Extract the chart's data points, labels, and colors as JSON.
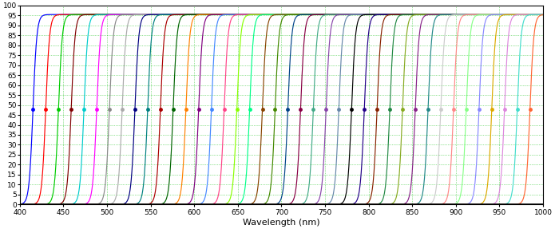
{
  "xmin": 400,
  "xmax": 1000,
  "ymin": 0,
  "ymax": 100,
  "xlabel": "Wavelength (nm)",
  "xticks": [
    400,
    450,
    500,
    550,
    600,
    650,
    700,
    750,
    800,
    850,
    900,
    950,
    1000
  ],
  "yticks": [
    0,
    5,
    10,
    15,
    20,
    25,
    30,
    35,
    40,
    45,
    50,
    55,
    60,
    65,
    70,
    75,
    80,
    85,
    90,
    95,
    100
  ],
  "background_color": "#ffffff",
  "grid_color": "#00bb00",
  "n_curves": 40,
  "center_start": 415,
  "center_end": 985,
  "steepness": 0.45,
  "max_transmission": 95.5,
  "figwidth": 6.95,
  "figheight": 2.87,
  "dpi": 100,
  "linewidth": 0.85,
  "markersize": 3.5,
  "xlabel_fontsize": 8,
  "tick_fontsize": 6.5
}
